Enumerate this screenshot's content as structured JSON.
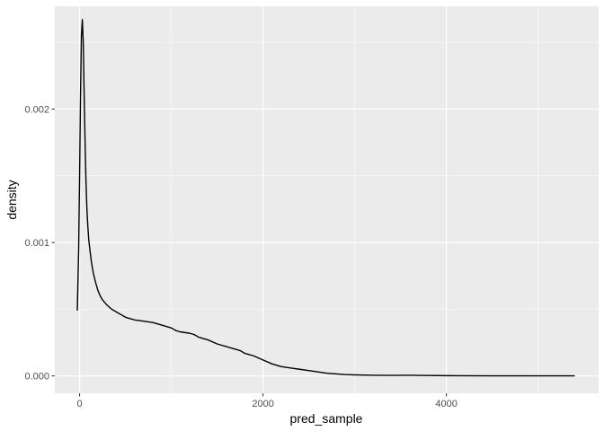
{
  "chart_data": {
    "type": "line",
    "title": "",
    "xlabel": "pred_sample",
    "ylabel": "density",
    "xlim": [
      -270,
      5660
    ],
    "ylim": [
      -0.00013,
      0.00277
    ],
    "x_ticks": [
      {
        "value": 0,
        "label": "0"
      },
      {
        "value": 2000,
        "label": "2000"
      },
      {
        "value": 4000,
        "label": "4000"
      }
    ],
    "y_ticks": [
      {
        "value": 0,
        "label": "0.000"
      },
      {
        "value": 0.001,
        "label": "0.001"
      },
      {
        "value": 0.002,
        "label": "0.002"
      }
    ],
    "grid": true,
    "legend": "none",
    "colors": {
      "panel_bg": "#EBEBEB",
      "grid_major": "#FFFFFF",
      "line": "#000000",
      "tick_label": "#4D4D4D",
      "tick_mark": "#333333"
    },
    "series": [
      {
        "x": [
          -25,
          -10,
          0,
          10,
          20,
          30,
          40,
          50,
          60,
          70,
          80,
          90,
          100,
          115,
          130,
          150,
          175,
          200,
          225,
          250,
          300,
          350,
          400,
          450,
          500,
          550,
          600,
          700,
          800,
          850,
          900,
          1000,
          1050,
          1100,
          1200,
          1250,
          1300,
          1400,
          1500,
          1550,
          1600,
          1700,
          1750,
          1800,
          1900,
          2000,
          2100,
          2150,
          2200,
          2300,
          2400,
          2500,
          2600,
          2700,
          2800,
          2900,
          3000,
          3200,
          3400,
          3600,
          3700,
          3800,
          4000,
          4500,
          5000,
          5400
        ],
        "y": [
          0.00049,
          0.00095,
          0.0015,
          0.0021,
          0.00255,
          0.00267,
          0.0025,
          0.0021,
          0.00175,
          0.00145,
          0.00125,
          0.00112,
          0.00102,
          0.00093,
          0.00085,
          0.00077,
          0.0007,
          0.00064,
          0.0006,
          0.00057,
          0.00053,
          0.0005,
          0.00048,
          0.00046,
          0.00044,
          0.00043,
          0.00042,
          0.00041,
          0.0004,
          0.00039,
          0.00038,
          0.00036,
          0.00034,
          0.00033,
          0.00032,
          0.00031,
          0.00029,
          0.00027,
          0.00024,
          0.00023,
          0.00022,
          0.0002,
          0.00019,
          0.00017,
          0.00015,
          0.00012,
          9e-05,
          8e-05,
          7e-05,
          6e-05,
          5e-05,
          4e-05,
          3e-05,
          2e-05,
          1.5e-05,
          1e-05,
          8e-06,
          5e-06,
          4e-06,
          5e-06,
          4e-06,
          3e-06,
          2e-06,
          1e-06,
          1e-06,
          5e-07
        ]
      }
    ]
  }
}
